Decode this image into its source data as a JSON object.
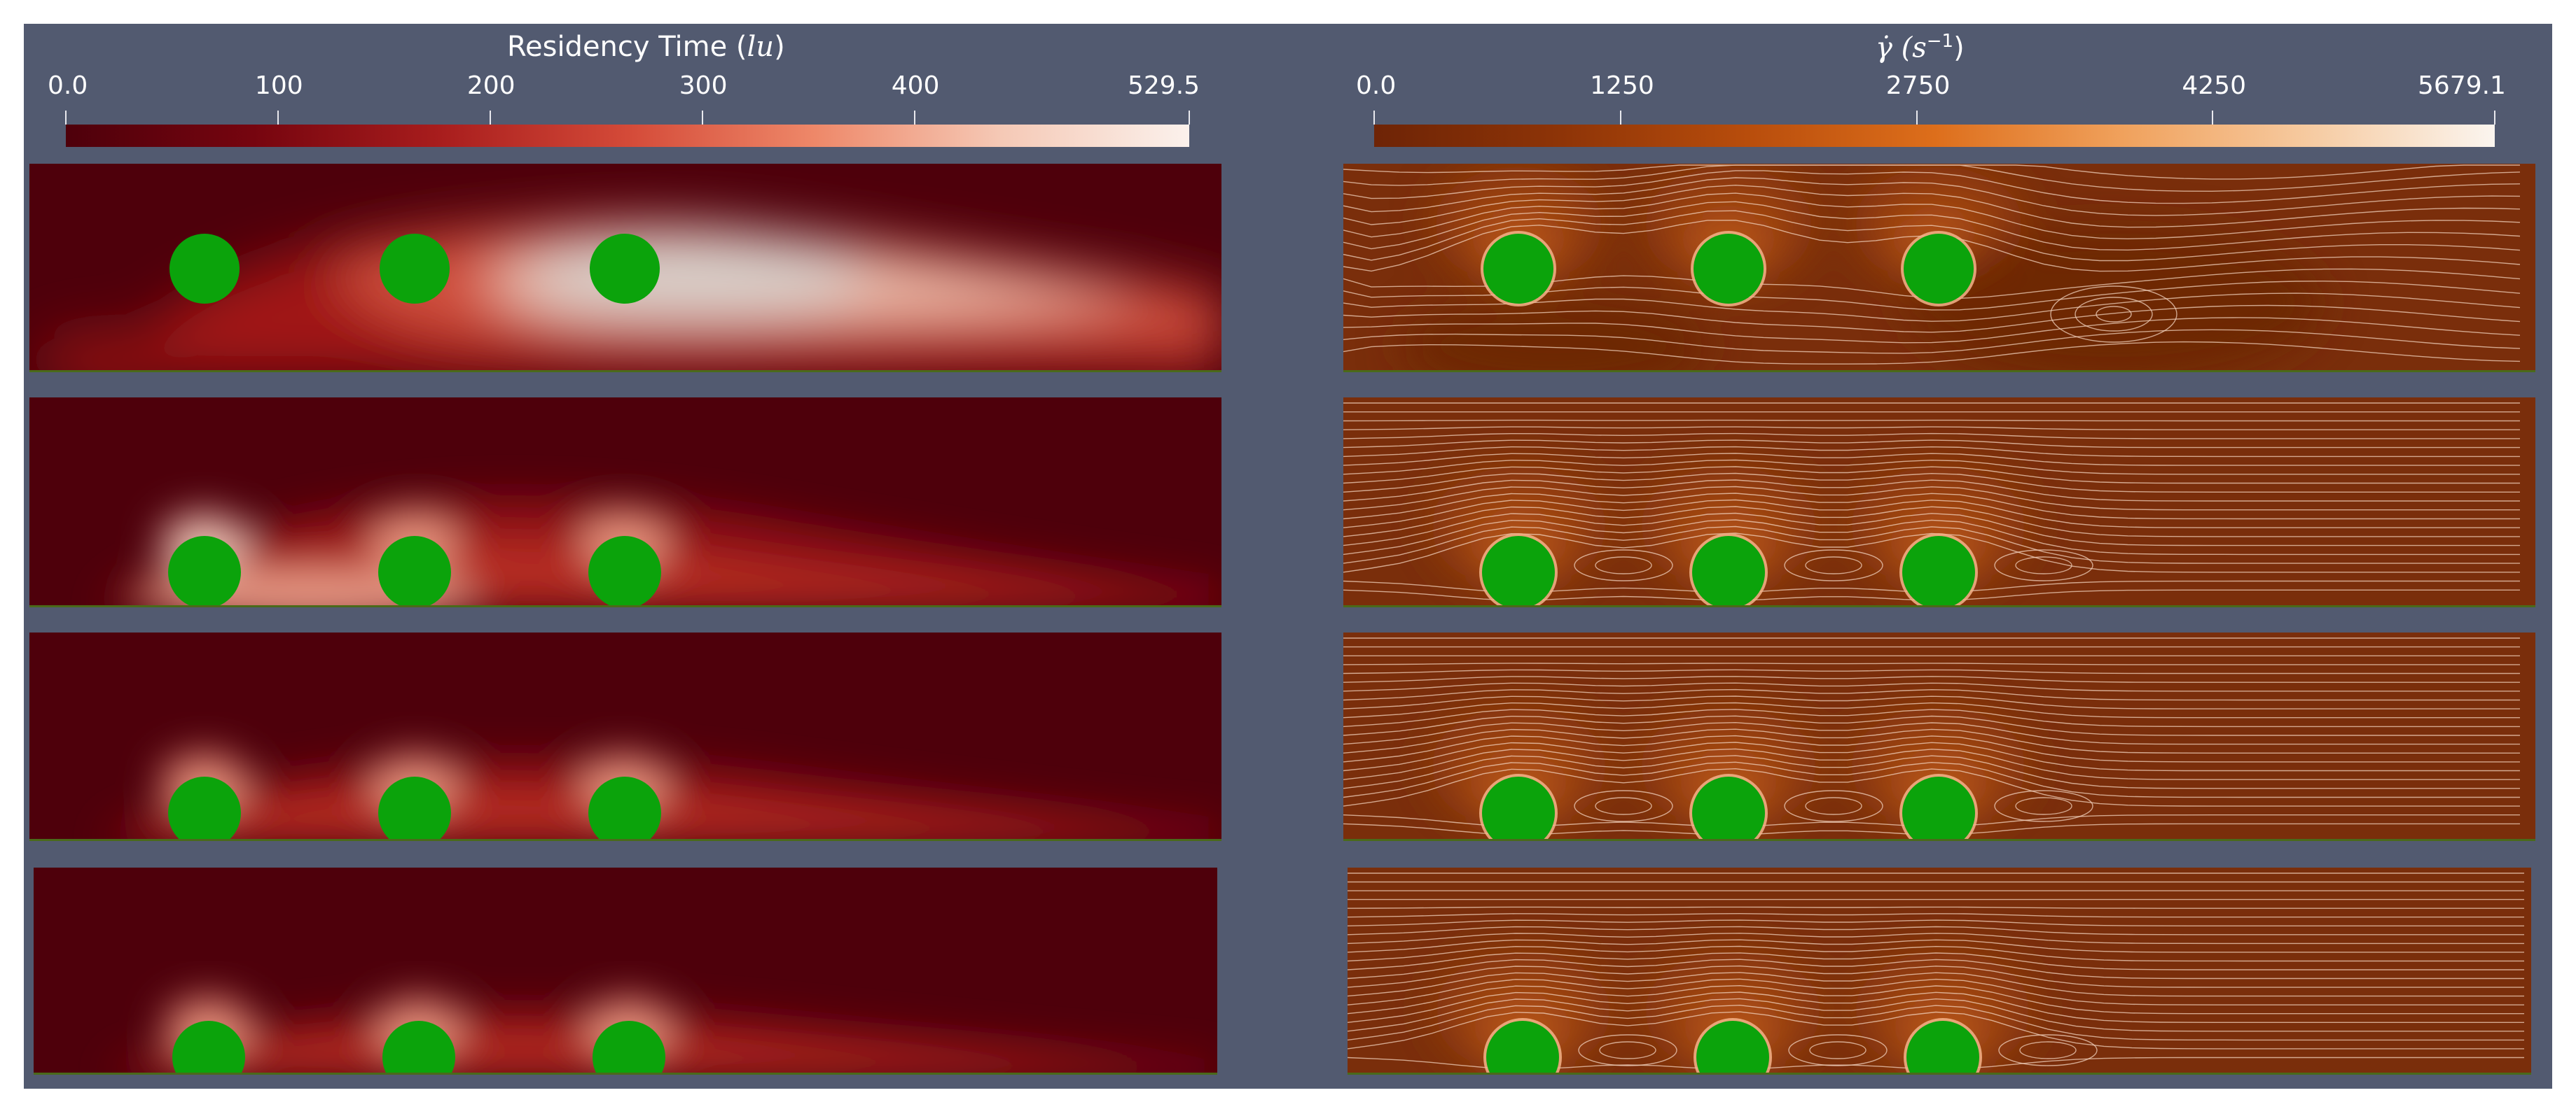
{
  "residency_colorbar": {
    "title_prefix": "Residency Time (",
    "title_unit": "lu",
    "title_suffix": ")",
    "ticks": [
      "0.0",
      "100",
      "200",
      "300",
      "400",
      "529.5"
    ],
    "tick_values": [
      0,
      100,
      200,
      300,
      400,
      529.5
    ],
    "range": [
      0,
      529.5
    ],
    "colors": [
      "#4e000b",
      "#76050f",
      "#a81d1d",
      "#d44a38",
      "#ee8869",
      "#f5c9b6",
      "#fbf1ec"
    ]
  },
  "shear_colorbar": {
    "title_prefix": "γ̇ (",
    "title_unit": "s",
    "title_exponent": "−1",
    "title_suffix": ")",
    "ticks": [
      "0.0",
      "1250",
      "2750",
      "4250",
      "5679.1"
    ],
    "tick_values": [
      0,
      1250,
      2750,
      4250,
      5679.1
    ],
    "range": [
      0,
      5679.1
    ],
    "colors": [
      "#6e2406",
      "#8e3407",
      "#b84d0c",
      "#dd6e1b",
      "#f0a15c",
      "#f6caa0",
      "#fbf5ef"
    ]
  },
  "colors": {
    "background": "#525a70",
    "obstacle_green": "#0ba30b",
    "residency_base": "#4e000b",
    "shear_base": "#7a2e0b",
    "streamline": "#f2d2bd"
  },
  "panels": [
    {
      "row": 1,
      "obstacle_offset": 0.5
    },
    {
      "row": 2,
      "obstacle_offset": 0.95
    },
    {
      "row": 3,
      "obstacle_offset": 1.2
    },
    {
      "row": 4,
      "obstacle_offset": 1.3
    }
  ]
}
